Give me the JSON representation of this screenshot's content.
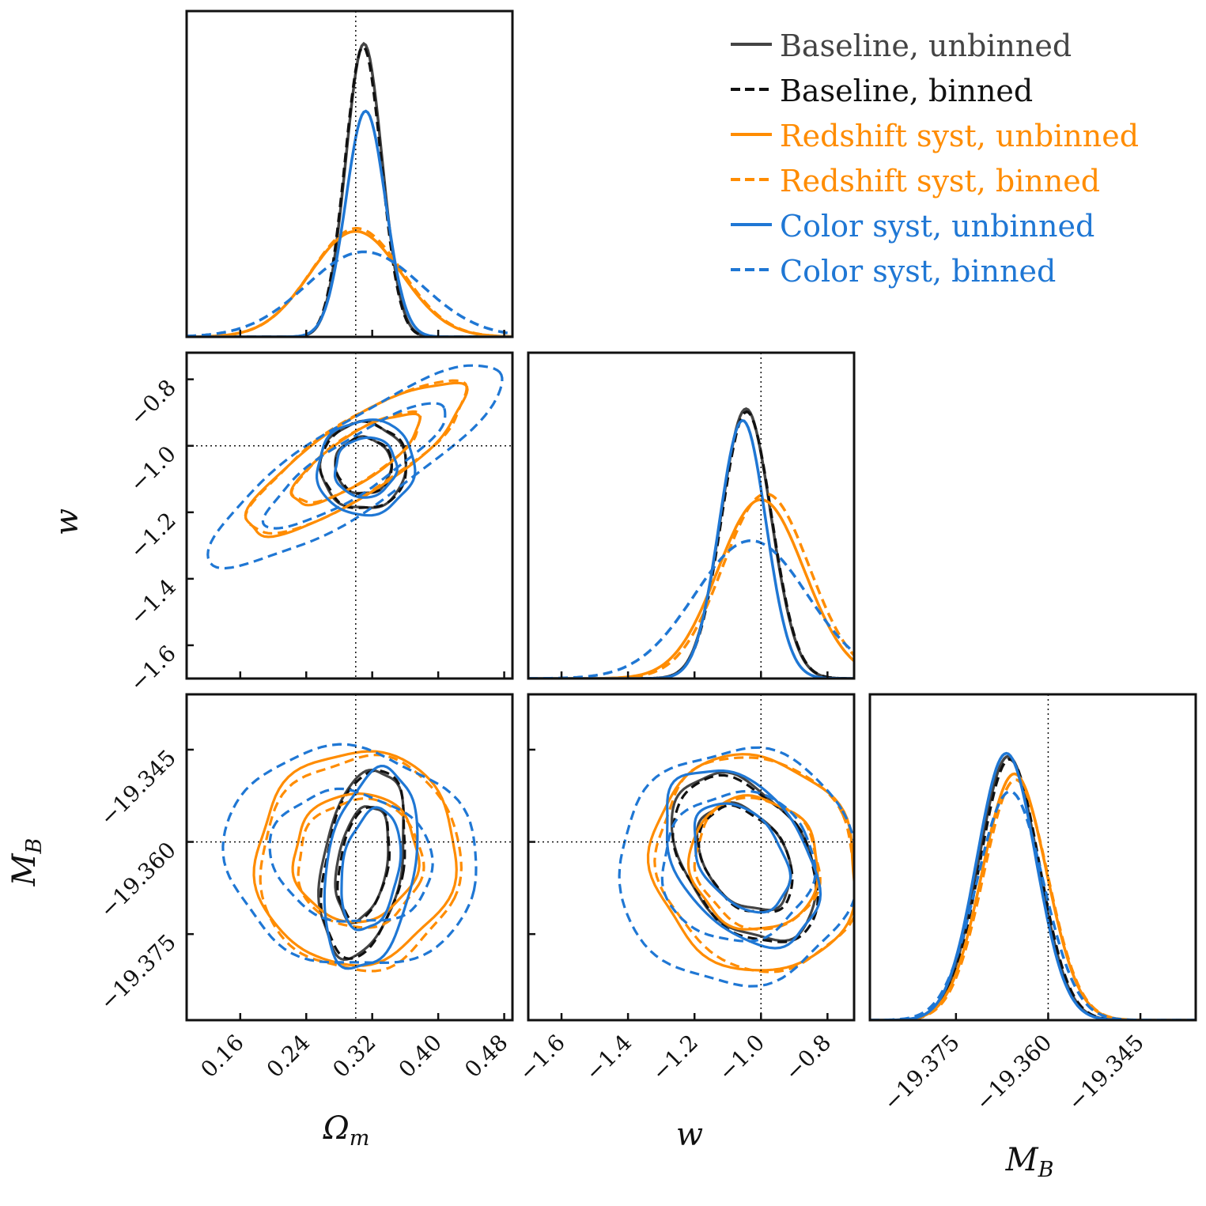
{
  "chart_data": {
    "type": "corner",
    "parameters": [
      "Omega_m",
      "w",
      "M_B"
    ],
    "truth": {
      "Omega_m": 0.3,
      "w": -1.0,
      "M_B": -19.36
    },
    "axes": {
      "Omega_m": {
        "label_main": "Ω",
        "label_sub": "m",
        "range": [
          0.095,
          0.49
        ],
        "ticks": [
          "0.16",
          "0.24",
          "0.32",
          "0.40",
          "0.48"
        ]
      },
      "w": {
        "label_main": "w",
        "label_sub": "",
        "range": [
          -1.7,
          -0.72
        ],
        "ticks": [
          "−1.6",
          "−1.4",
          "−1.2",
          "−1.0",
          "−0.8"
        ]
      },
      "M_B": {
        "label_main": "M",
        "label_sub": "B",
        "range": [
          -19.389,
          -19.336
        ],
        "ticks": [
          "−19.375",
          "−19.360",
          "−19.345"
        ]
      }
    },
    "tick_values": {
      "Omega_m": [
        0.16,
        0.24,
        0.32,
        0.4,
        0.48
      ],
      "w": [
        -1.6,
        -1.4,
        -1.2,
        -1.0,
        -0.8
      ],
      "M_B": [
        -19.375,
        -19.36,
        -19.345
      ]
    },
    "series": [
      {
        "name": "Baseline, unbinned",
        "color": "#444444",
        "dash": "solid",
        "marginals": {
          "Omega_m": {
            "mean": 0.31,
            "sd": 0.022,
            "peak": 1.0
          },
          "w": {
            "mean": -1.045,
            "sd": 0.075,
            "peak": 0.92
          },
          "M_B": {
            "mean": -19.3665,
            "sd": 0.0048,
            "peak": 0.9
          }
        },
        "contours": [
          {
            "x": "Omega_m",
            "y": "w",
            "cx": 0.309,
            "cy": -1.06,
            "levels": [
              {
                "dx": 0.052,
                "dy": 0.13,
                "rot": -35
              },
              {
                "dx": 0.034,
                "dy": 0.085,
                "rot": -35
              }
            ]
          },
          {
            "x": "Omega_m",
            "y": "M_B",
            "cx": 0.308,
            "cy": -19.3635,
            "levels": [
              {
                "dx": 0.048,
                "dy": 0.0155,
                "rot": 10
              },
              {
                "dx": 0.03,
                "dy": 0.0095,
                "rot": 10
              }
            ]
          },
          {
            "x": "w",
            "y": "M_B",
            "cx": -1.05,
            "cy": -19.3625,
            "levels": [
              {
                "dx": 0.18,
                "dy": 0.015,
                "rot": -35
              },
              {
                "dx": 0.12,
                "dy": 0.0095,
                "rot": -35
              }
            ]
          }
        ]
      },
      {
        "name": "Baseline, binned",
        "color": "#111111",
        "dash": "dashed",
        "marginals": {
          "Omega_m": {
            "mean": 0.309,
            "sd": 0.022,
            "peak": 0.99
          },
          "w": {
            "mean": -1.043,
            "sd": 0.075,
            "peak": 0.91
          },
          "M_B": {
            "mean": -19.3663,
            "sd": 0.0048,
            "peak": 0.89
          }
        },
        "contours": [
          {
            "x": "Omega_m",
            "y": "w",
            "cx": 0.31,
            "cy": -1.06,
            "levels": [
              {
                "dx": 0.052,
                "dy": 0.13,
                "rot": -35
              },
              {
                "dx": 0.034,
                "dy": 0.085,
                "rot": -35
              }
            ]
          },
          {
            "x": "Omega_m",
            "y": "M_B",
            "cx": 0.31,
            "cy": -19.3635,
            "levels": [
              {
                "dx": 0.047,
                "dy": 0.0155,
                "rot": 10
              },
              {
                "dx": 0.029,
                "dy": 0.0095,
                "rot": 10
              }
            ]
          },
          {
            "x": "w",
            "y": "M_B",
            "cx": -1.045,
            "cy": -19.363,
            "levels": [
              {
                "dx": 0.18,
                "dy": 0.015,
                "rot": -35
              },
              {
                "dx": 0.12,
                "dy": 0.0095,
                "rot": -35
              }
            ]
          }
        ]
      },
      {
        "name": "Redshift syst, unbinned",
        "color": "#ff8c00",
        "dash": "solid",
        "marginals": {
          "Omega_m": {
            "mean": 0.3,
            "sd": 0.055,
            "peak": 0.36
          },
          "w": {
            "mean": -1.0,
            "sd": 0.13,
            "peak": 0.61
          },
          "M_B": {
            "mean": -19.3655,
            "sd": 0.0052,
            "peak": 0.84
          }
        },
        "contours": [
          {
            "x": "Omega_m",
            "y": "w",
            "cx": 0.3,
            "cy": -1.04,
            "levels": [
              {
                "dx": 0.155,
                "dy": 0.11,
                "rot": -33
              },
              {
                "dx": 0.09,
                "dy": 0.07,
                "rot": -33
              }
            ]
          },
          {
            "x": "Omega_m",
            "y": "M_B",
            "cx": 0.3,
            "cy": -19.3625,
            "levels": [
              {
                "dx": 0.12,
                "dy": 0.0175,
                "rot": 20
              },
              {
                "dx": 0.075,
                "dy": 0.0105,
                "rot": 20
              }
            ]
          },
          {
            "x": "w",
            "y": "M_B",
            "cx": -1.02,
            "cy": -19.3635,
            "levels": [
              {
                "dx": 0.3,
                "dy": 0.018,
                "rot": -30
              },
              {
                "dx": 0.19,
                "dy": 0.011,
                "rot": -30
              }
            ]
          }
        ]
      },
      {
        "name": "Redshift syst, binned",
        "color": "#ff8c00",
        "dash": "dashed",
        "marginals": {
          "Omega_m": {
            "mean": 0.301,
            "sd": 0.055,
            "peak": 0.37
          },
          "w": {
            "mean": -0.985,
            "sd": 0.13,
            "peak": 0.63
          },
          "M_B": {
            "mean": -19.3653,
            "sd": 0.0052,
            "peak": 0.82
          }
        },
        "contours": [
          {
            "x": "Omega_m",
            "y": "w",
            "cx": 0.302,
            "cy": -1.035,
            "levels": [
              {
                "dx": 0.155,
                "dy": 0.11,
                "rot": -33
              },
              {
                "dx": 0.09,
                "dy": 0.07,
                "rot": -33
              }
            ]
          },
          {
            "x": "Omega_m",
            "y": "M_B",
            "cx": 0.305,
            "cy": -19.3635,
            "levels": [
              {
                "dx": 0.12,
                "dy": 0.0175,
                "rot": 20
              },
              {
                "dx": 0.075,
                "dy": 0.0105,
                "rot": 20
              }
            ]
          },
          {
            "x": "w",
            "y": "M_B",
            "cx": -1.01,
            "cy": -19.3635,
            "levels": [
              {
                "dx": 0.29,
                "dy": 0.018,
                "rot": -30
              },
              {
                "dx": 0.18,
                "dy": 0.011,
                "rot": -30
              }
            ]
          }
        ]
      },
      {
        "name": "Color syst, unbinned",
        "color": "#1f77d4",
        "dash": "solid",
        "marginals": {
          "Omega_m": {
            "mean": 0.312,
            "sd": 0.024,
            "peak": 0.77
          },
          "w": {
            "mean": -1.055,
            "sd": 0.07,
            "peak": 0.88
          },
          "M_B": {
            "mean": -19.3668,
            "sd": 0.0048,
            "peak": 0.91
          }
        },
        "contours": [
          {
            "x": "Omega_m",
            "y": "w",
            "cx": 0.312,
            "cy": -1.065,
            "levels": [
              {
                "dx": 0.06,
                "dy": 0.14,
                "rot": -35
              },
              {
                "dx": 0.038,
                "dy": 0.088,
                "rot": -35
              }
            ]
          },
          {
            "x": "Omega_m",
            "y": "M_B",
            "cx": 0.318,
            "cy": -19.3645,
            "levels": [
              {
                "dx": 0.053,
                "dy": 0.0165,
                "rot": 10
              },
              {
                "dx": 0.034,
                "dy": 0.01,
                "rot": 10
              }
            ]
          },
          {
            "x": "w",
            "y": "M_B",
            "cx": -1.06,
            "cy": -19.3625,
            "levels": [
              {
                "dx": 0.19,
                "dy": 0.016,
                "rot": -35
              },
              {
                "dx": 0.12,
                "dy": 0.0098,
                "rot": -35
              }
            ]
          }
        ]
      },
      {
        "name": "Color syst, binned",
        "color": "#1f77d4",
        "dash": "dashed",
        "marginals": {
          "Omega_m": {
            "mean": 0.31,
            "sd": 0.07,
            "peak": 0.29
          },
          "w": {
            "mean": -1.03,
            "sd": 0.17,
            "peak": 0.47
          },
          "M_B": {
            "mean": -19.3662,
            "sd": 0.0054,
            "peak": 0.78
          }
        },
        "contours": [
          {
            "x": "Omega_m",
            "y": "w",
            "cx": 0.3,
            "cy": -1.06,
            "levels": [
              {
                "dx": 0.21,
                "dy": 0.13,
                "rot": -33
              },
              {
                "dx": 0.13,
                "dy": 0.08,
                "rot": -33
              }
            ]
          },
          {
            "x": "Omega_m",
            "y": "M_B",
            "cx": 0.295,
            "cy": -19.3625,
            "levels": [
              {
                "dx": 0.155,
                "dy": 0.0175,
                "rot": 15
              },
              {
                "dx": 0.1,
                "dy": 0.0105,
                "rot": 15
              }
            ]
          },
          {
            "x": "w",
            "y": "M_B",
            "cx": -1.07,
            "cy": -19.364,
            "levels": [
              {
                "dx": 0.36,
                "dy": 0.019,
                "rot": -28
              },
              {
                "dx": 0.23,
                "dy": 0.012,
                "rot": -28
              }
            ]
          }
        ]
      }
    ],
    "legend_position": "top-right",
    "grid": false
  }
}
